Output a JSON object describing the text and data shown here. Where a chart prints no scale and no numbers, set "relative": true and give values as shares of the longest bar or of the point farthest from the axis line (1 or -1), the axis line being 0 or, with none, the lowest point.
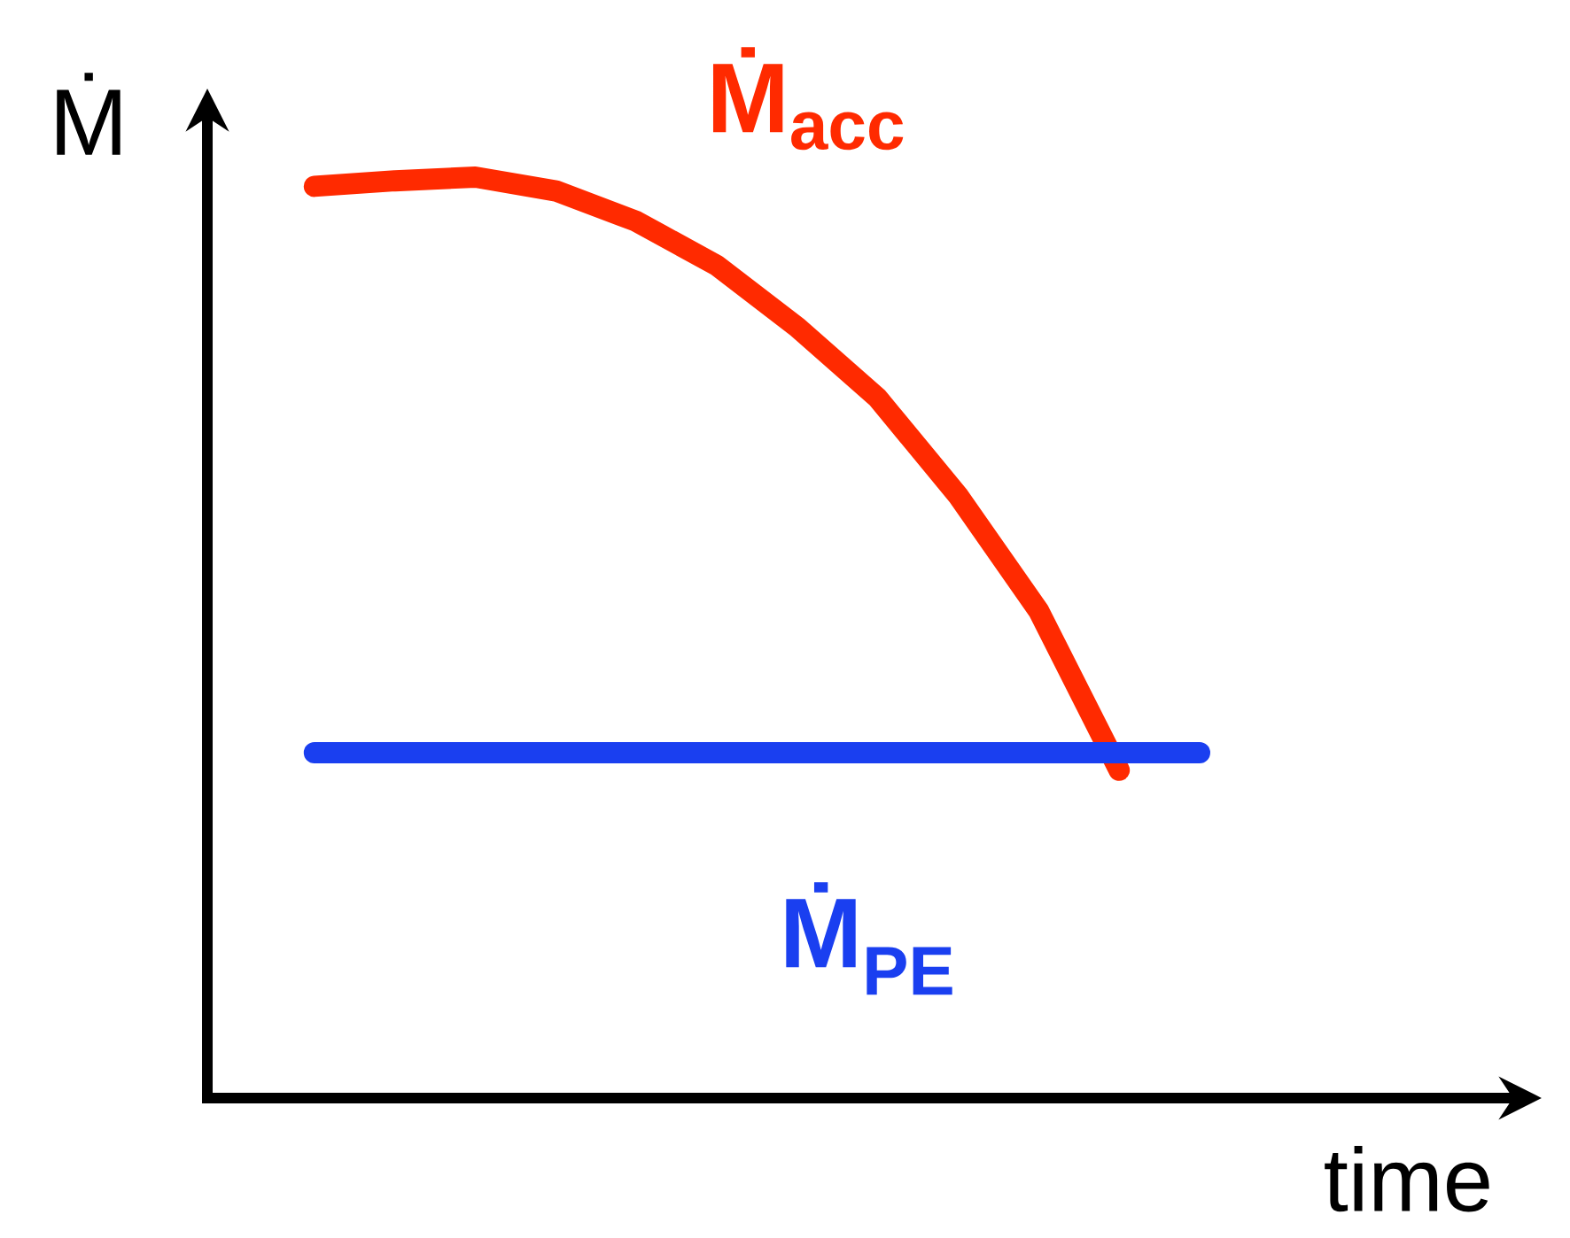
{
  "chart_data": {
    "type": "line",
    "relative": true,
    "xlabel": "time",
    "ylabel": "Ṁ",
    "categories": [
      null,
      null,
      null,
      null,
      null,
      null,
      null,
      null,
      null,
      null,
      null,
      null
    ],
    "series": [
      {
        "name": "**Ṁ$_{acc}$**",
        "color": "#ff2a00",
        "values": [
          0.99,
          0.996,
          1,
          0.985,
          0.952,
          0.904,
          0.837,
          0.76,
          0.654,
          0.529,
          0.356,
          null
        ]
      },
      {
        "name": "**Ṁ$_{PE}$**",
        "color": "#1a3ff0",
        "values": [
          0.375,
          0.375,
          0.375,
          0.375,
          0.375,
          0.375,
          0.375,
          0.375,
          0.375,
          0.375,
          0.375,
          0.375
        ]
      }
    ]
  }
}
